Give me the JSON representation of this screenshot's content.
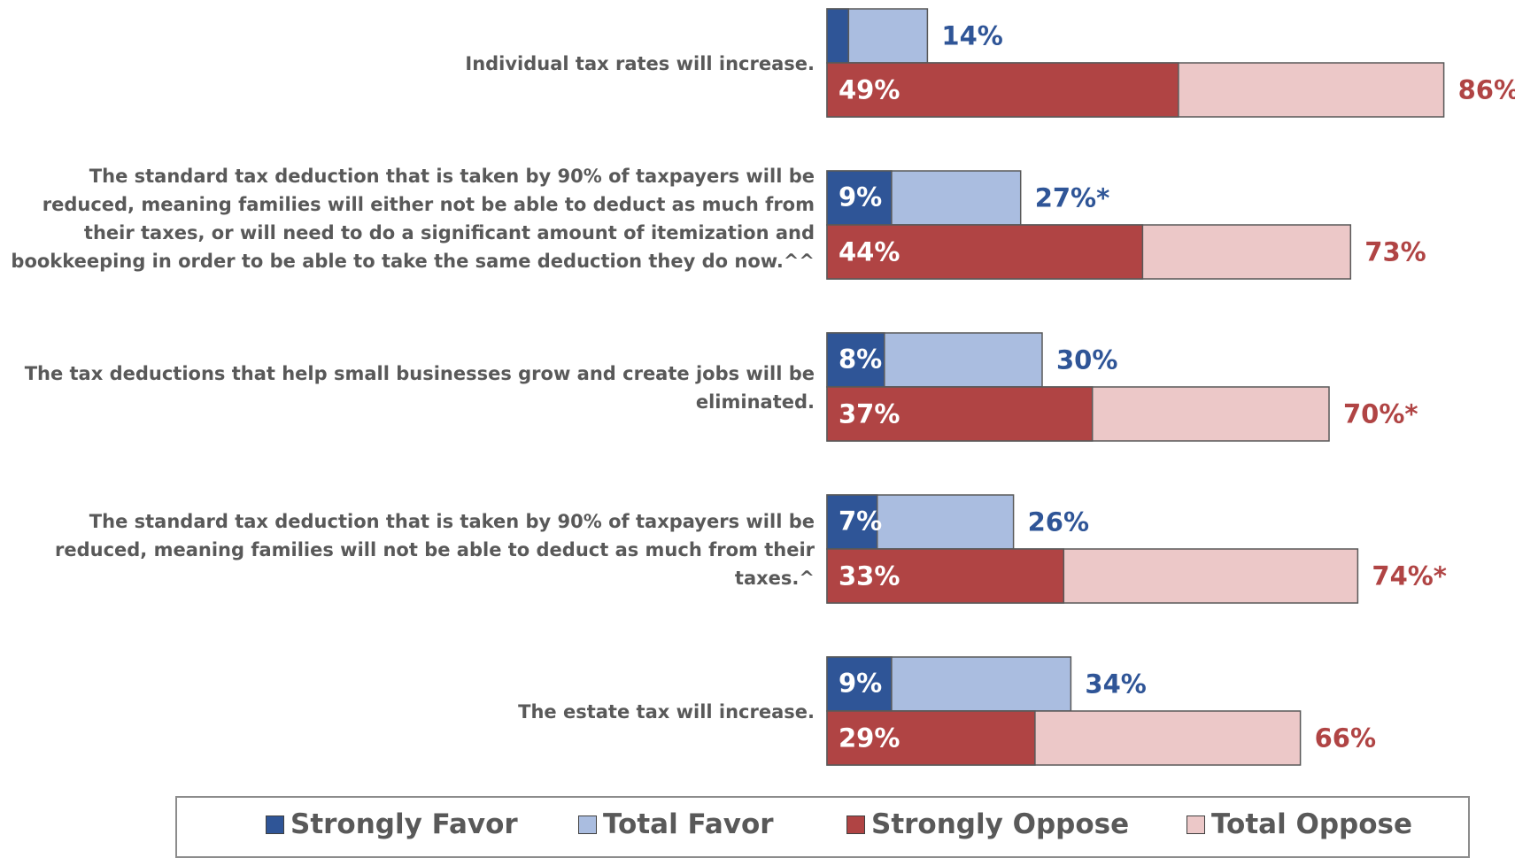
{
  "chart_data": {
    "type": "bar",
    "orientation": "horizontal",
    "stacked_overlay": true,
    "title": "",
    "xlabel": "",
    "ylabel": "",
    "xlim": [
      0,
      100
    ],
    "grid": false,
    "legend_position": "bottom",
    "categories": [
      "Individual tax rates will increase.",
      "The standard tax deduction that is taken by 90% of taxpayers will be reduced, meaning families will either not be able to deduct as much from their taxes, or will need to do a significant amount of itemization and bookkeeping in order to be able to take the same deduction they do now.^^",
      "The tax deductions that help small businesses grow and create jobs will be eliminated.",
      "The standard tax deduction that is taken by 90% of taxpayers will be reduced, meaning families will not be able to deduct as much from their taxes.^",
      "The estate tax will increase."
    ],
    "series": [
      {
        "name": "Strongly Favor",
        "color": "#2f5597",
        "values": [
          3,
          9,
          8,
          7,
          9
        ],
        "labels": [
          "",
          "9%",
          "8%",
          "7%",
          "9%"
        ]
      },
      {
        "name": "Total Favor",
        "color": "#aabde0",
        "values": [
          14,
          27,
          30,
          26,
          34
        ],
        "labels": [
          "14%",
          "27%*",
          "30%",
          "26%",
          "34%"
        ]
      },
      {
        "name": "Strongly Oppose",
        "color": "#b04444",
        "values": [
          49,
          44,
          37,
          33,
          29
        ],
        "labels": [
          "49%",
          "44%",
          "37%",
          "33%",
          "29%"
        ]
      },
      {
        "name": "Total Oppose",
        "color": "#ecc8c8",
        "values": [
          86,
          73,
          70,
          74,
          66
        ],
        "labels": [
          "86%",
          "73%",
          "70%*",
          "74%*",
          "66%"
        ]
      }
    ],
    "label_colors": {
      "favor": "#2f5597",
      "oppose": "#b04444",
      "inside": "#ffffff"
    }
  }
}
